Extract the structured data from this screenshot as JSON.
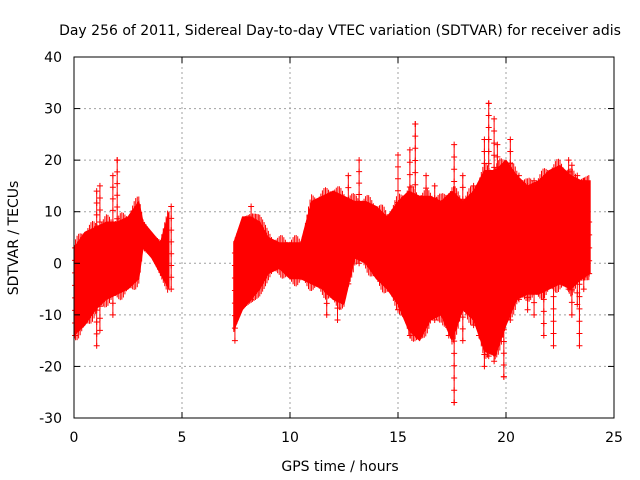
{
  "chart_data": {
    "type": "scatter",
    "title": "Day 256 of 2011, Sidereal Day-to-day VTEC variation (SDTVAR) for receiver adis",
    "xlabel": "GPS time / hours",
    "ylabel": "SDTVAR / TECUs",
    "xlim": [
      0,
      25
    ],
    "ylim": [
      -30,
      40
    ],
    "x_ticks": [
      0,
      5,
      10,
      15,
      20,
      25
    ],
    "y_ticks": [
      -30,
      -20,
      -10,
      0,
      10,
      20,
      30,
      40
    ],
    "x_tick_labels": [
      "0",
      "5",
      "10",
      "15",
      "20",
      "25"
    ],
    "y_tick_labels": [
      "-30",
      "-20",
      "-10",
      "0",
      "10",
      "20",
      "30",
      "40"
    ],
    "grid": true,
    "marker": "+",
    "color": "#ff0000",
    "series": [
      {
        "name": "SDTVAR",
        "envelope": [
          {
            "x": 0.0,
            "lo": -14,
            "hi": 3
          },
          {
            "x": 0.5,
            "lo": -12,
            "hi": 6
          },
          {
            "x": 1.0,
            "lo": -9,
            "hi": 7
          },
          {
            "x": 1.5,
            "lo": -7,
            "hi": 8
          },
          {
            "x": 2.0,
            "lo": -6,
            "hi": 8
          },
          {
            "x": 2.5,
            "lo": -5,
            "hi": 9
          },
          {
            "x": 3.0,
            "lo": -3,
            "hi": 12
          },
          {
            "x": 3.2,
            "lo": 3,
            "hi": 8
          },
          {
            "x": 3.6,
            "lo": 1,
            "hi": 6
          },
          {
            "x": 4.0,
            "lo": -2,
            "hi": 4
          },
          {
            "x": 4.4,
            "lo": -5,
            "hi": 10
          },
          {
            "x": 7.4,
            "lo": -13,
            "hi": 4
          },
          {
            "x": 7.8,
            "lo": -9,
            "hi": 9
          },
          {
            "x": 8.2,
            "lo": -7,
            "hi": 9
          },
          {
            "x": 8.6,
            "lo": -5,
            "hi": 8
          },
          {
            "x": 9.0,
            "lo": -2,
            "hi": 5
          },
          {
            "x": 9.5,
            "lo": -1,
            "hi": 4
          },
          {
            "x": 10.0,
            "lo": -3,
            "hi": 4
          },
          {
            "x": 10.5,
            "lo": -3,
            "hi": 4
          },
          {
            "x": 11.0,
            "lo": -4,
            "hi": 12
          },
          {
            "x": 11.5,
            "lo": -5,
            "hi": 13
          },
          {
            "x": 12.0,
            "lo": -7,
            "hi": 14
          },
          {
            "x": 12.5,
            "lo": -8,
            "hi": 13
          },
          {
            "x": 13.0,
            "lo": 1,
            "hi": 12
          },
          {
            "x": 13.5,
            "lo": 0,
            "hi": 12
          },
          {
            "x": 14.0,
            "lo": -3,
            "hi": 11
          },
          {
            "x": 14.5,
            "lo": -5,
            "hi": 9
          },
          {
            "x": 15.0,
            "lo": -8,
            "hi": 12
          },
          {
            "x": 15.5,
            "lo": -13,
            "hi": 14
          },
          {
            "x": 16.0,
            "lo": -15,
            "hi": 13
          },
          {
            "x": 16.5,
            "lo": -11,
            "hi": 13
          },
          {
            "x": 17.0,
            "lo": -10,
            "hi": 12
          },
          {
            "x": 17.5,
            "lo": -15,
            "hi": 14
          },
          {
            "x": 18.0,
            "lo": -9,
            "hi": 12
          },
          {
            "x": 18.5,
            "lo": -11,
            "hi": 14
          },
          {
            "x": 19.0,
            "lo": -17,
            "hi": 18
          },
          {
            "x": 19.5,
            "lo": -18,
            "hi": 18
          },
          {
            "x": 20.0,
            "lo": -12,
            "hi": 20
          },
          {
            "x": 20.5,
            "lo": -7,
            "hi": 17
          },
          {
            "x": 21.0,
            "lo": -6,
            "hi": 15
          },
          {
            "x": 21.5,
            "lo": -6,
            "hi": 16
          },
          {
            "x": 22.0,
            "lo": -5,
            "hi": 18
          },
          {
            "x": 22.5,
            "lo": -4,
            "hi": 19
          },
          {
            "x": 23.0,
            "lo": -5,
            "hi": 17
          },
          {
            "x": 23.5,
            "lo": -3,
            "hi": 16
          },
          {
            "x": 23.9,
            "lo": -2,
            "hi": 16
          }
        ],
        "spikes": [
          {
            "x": 0.05,
            "lo": -14,
            "hi": 3
          },
          {
            "x": 1.05,
            "lo": -16,
            "hi": 14
          },
          {
            "x": 1.2,
            "lo": -13,
            "hi": 15
          },
          {
            "x": 1.8,
            "lo": -10,
            "hi": 17
          },
          {
            "x": 2.0,
            "lo": -5,
            "hi": 20
          },
          {
            "x": 4.5,
            "lo": -5,
            "hi": 11
          },
          {
            "x": 7.45,
            "lo": -15,
            "hi": 2
          },
          {
            "x": 8.2,
            "lo": -7,
            "hi": 11
          },
          {
            "x": 11.7,
            "lo": -10,
            "hi": 10
          },
          {
            "x": 12.2,
            "lo": -11,
            "hi": 12
          },
          {
            "x": 12.7,
            "lo": -4,
            "hi": 17
          },
          {
            "x": 13.2,
            "lo": 0,
            "hi": 20
          },
          {
            "x": 15.0,
            "lo": -9,
            "hi": 21
          },
          {
            "x": 15.55,
            "lo": -14,
            "hi": 22
          },
          {
            "x": 15.8,
            "lo": -13,
            "hi": 27
          },
          {
            "x": 16.3,
            "lo": -12,
            "hi": 17
          },
          {
            "x": 16.7,
            "lo": -11,
            "hi": 15
          },
          {
            "x": 17.35,
            "lo": -14,
            "hi": 13
          },
          {
            "x": 17.6,
            "lo": -27,
            "hi": 23
          },
          {
            "x": 18.0,
            "lo": -15,
            "hi": 17
          },
          {
            "x": 18.5,
            "lo": -12,
            "hi": 15
          },
          {
            "x": 18.75,
            "lo": -14,
            "hi": 12
          },
          {
            "x": 19.0,
            "lo": -20,
            "hi": 24
          },
          {
            "x": 19.2,
            "lo": -18,
            "hi": 31
          },
          {
            "x": 19.45,
            "lo": -19,
            "hi": 28
          },
          {
            "x": 19.6,
            "lo": -15,
            "hi": 23
          },
          {
            "x": 19.9,
            "lo": -22,
            "hi": 19
          },
          {
            "x": 20.2,
            "lo": -11,
            "hi": 24
          },
          {
            "x": 20.6,
            "lo": -7,
            "hi": 17
          },
          {
            "x": 21.0,
            "lo": -9,
            "hi": 15
          },
          {
            "x": 21.3,
            "lo": -10,
            "hi": 16
          },
          {
            "x": 21.75,
            "lo": -14,
            "hi": 14
          },
          {
            "x": 22.2,
            "lo": -16,
            "hi": 15
          },
          {
            "x": 22.9,
            "lo": -5,
            "hi": 20
          },
          {
            "x": 23.05,
            "lo": -10,
            "hi": 19
          },
          {
            "x": 23.3,
            "lo": -8,
            "hi": 17
          },
          {
            "x": 23.4,
            "lo": -16,
            "hi": 15
          },
          {
            "x": 23.6,
            "lo": -5,
            "hi": 16
          },
          {
            "x": 23.85,
            "lo": -2,
            "hi": 8
          }
        ],
        "notable_points": [
          {
            "x": 2.0,
            "y": 20
          },
          {
            "x": 17.6,
            "y": -27
          },
          {
            "x": 19.2,
            "y": 31
          },
          {
            "x": 19.9,
            "y": -22
          },
          {
            "x": 15.8,
            "y": 27
          }
        ]
      }
    ]
  }
}
